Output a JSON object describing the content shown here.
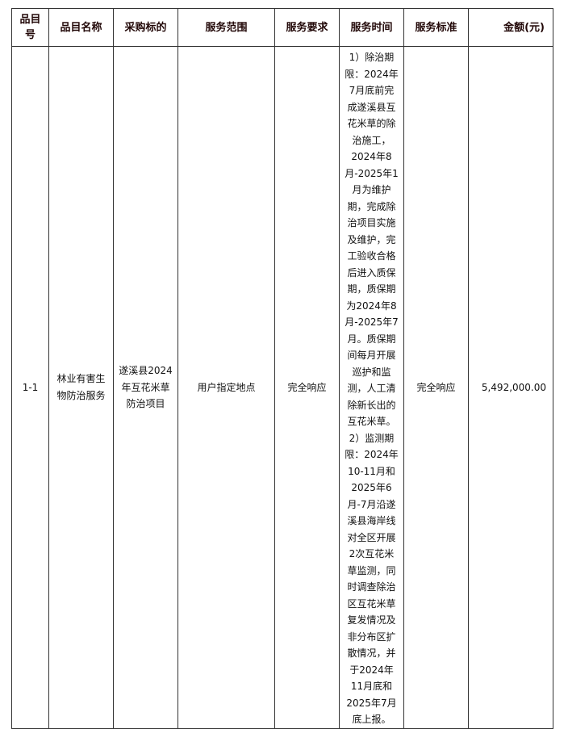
{
  "table": {
    "headers": [
      "品目号",
      "品目名称",
      "采购标的",
      "服务范围",
      "服务要求",
      "服务时间",
      "服务标准",
      "金额(元)"
    ],
    "rows": [
      {
        "item_no": "1-1",
        "item_name": "林业有害生物防治服务",
        "subject": "遂溪县2024年互花米草防治项目",
        "scope": "用户指定地点",
        "requirement": "完全响应",
        "time": "1）除治期限：2024年7月底前完成遂溪县互花米草的除治施工，2024年8月-2025年1月为维护期，完成除治项目实施及维护，完工验收合格后进入质保期，质保期为2024年8月-2025年7月。质保期间每月开展巡护和监测，人工清除新长出的互花米草。2）监测期限：2024年10-11月和2025年6月-7月沿遂溪县海岸线对全区开展2次互花米草监测，同时调查除治区互花米草复发情况及非分布区扩散情况，并于2024年11月底和2025年7月底上报。",
        "standard": "完全响应",
        "amount": "5,492,000.00"
      }
    ]
  }
}
